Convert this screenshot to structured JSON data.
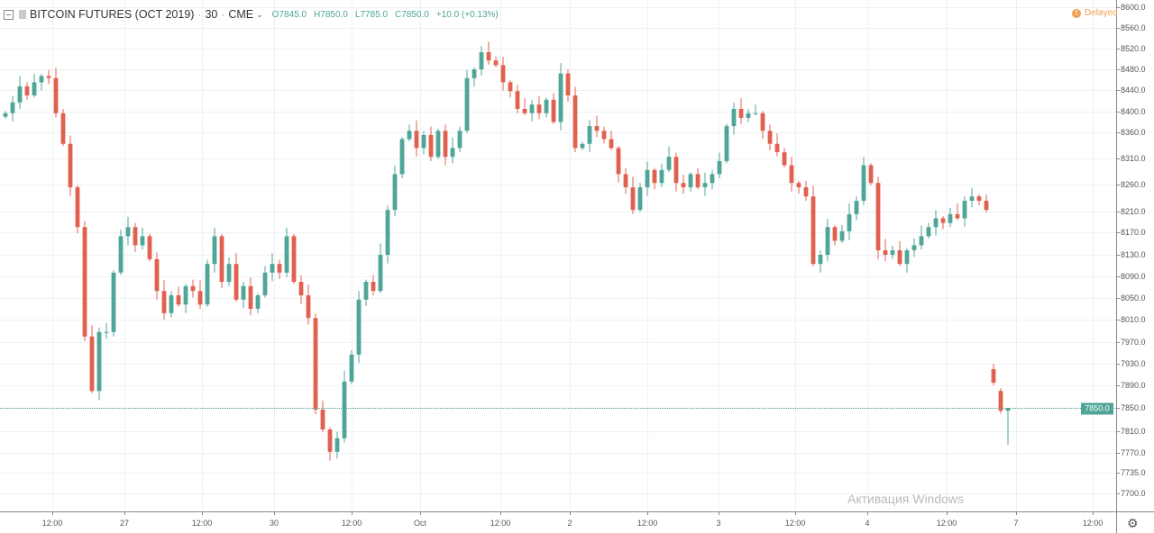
{
  "header": {
    "title": "BITCOIN FUTURES (OCT 2019)",
    "interval": "30",
    "exchange": "CME",
    "open": "O7845.0",
    "high": "H7850.0",
    "low": "L7785.0",
    "close": "C7850.0",
    "change": "+10.0 (+0.13%)"
  },
  "status": {
    "delayed_label": "Delayed"
  },
  "watermark": "Активация Windows",
  "colors": {
    "up": "#4fa597",
    "down": "#e0614f",
    "grid": "#eef1f4",
    "delayed": "#f0a050"
  },
  "chart_data": {
    "type": "candlestick",
    "title": "BITCOIN FUTURES (OCT 2019)",
    "y_scale": "price",
    "ylim": [
      7690,
      8610
    ],
    "grid": true,
    "y_ticks": [
      "8600.0",
      "8560.0",
      "8520.0",
      "8480.0",
      "8440.0",
      "8400.0",
      "8360.0",
      "8310.0",
      "8260.0",
      "8210.0",
      "8170.0",
      "8130.0",
      "8090.0",
      "8050.0",
      "8010.0",
      "7970.0",
      "7930.0",
      "7890.0",
      "7850.0",
      "7810.0",
      "7770.0",
      "7735.0",
      "7700.0"
    ],
    "x_ticks": [
      "12:00",
      "27",
      "12:00",
      "30",
      "12:00",
      "Oct",
      "12:00",
      "2",
      "12:00",
      "3",
      "12:00",
      "4",
      "12:00",
      "7",
      "12:00"
    ],
    "first_open": 8390,
    "approx_closes": [
      8397,
      8417,
      8447,
      8430,
      8455,
      8467,
      8463,
      8397,
      8338,
      8255,
      8180,
      7980,
      7880,
      7988,
      7988,
      8097,
      8163,
      8180,
      8147,
      8163,
      8122,
      8063,
      8022,
      8055,
      8038,
      8072,
      8063,
      8038,
      8113,
      8163,
      8080,
      8113,
      8047,
      8072,
      8030,
      8055,
      8097,
      8113,
      8097,
      8163,
      8080,
      8055,
      8013,
      7847,
      7813,
      7772,
      7797,
      7897,
      7947,
      8047,
      8080,
      8063,
      8130,
      8213,
      8280,
      8347,
      8363,
      8330,
      8355,
      8313,
      8363,
      8313,
      8330,
      8363,
      8463,
      8480,
      8513,
      8497,
      8488,
      8455,
      8438,
      8405,
      8397,
      8413,
      8397,
      8422,
      8380,
      8472,
      8430,
      8330,
      8338,
      8372,
      8363,
      8347,
      8330,
      8280,
      8255,
      8213,
      8255,
      8288,
      8263,
      8288,
      8313,
      8263,
      8255,
      8280,
      8255,
      8263,
      8280,
      8305,
      8372,
      8405,
      8388,
      8397,
      8397,
      8363,
      8338,
      8322,
      8297,
      8263,
      8255,
      8238,
      8113,
      8130,
      8180,
      8155,
      8172,
      8205,
      8230,
      8297,
      8263,
      8138,
      8130,
      8138,
      8113,
      8138,
      8147,
      8163,
      8180,
      8197,
      8188,
      8205,
      8197,
      8230,
      8238,
      8230,
      8213
    ],
    "last_candles_ohlc": [
      [
        7920,
        7930,
        7890,
        7895
      ],
      [
        7880,
        7885,
        7840,
        7845
      ],
      [
        7845,
        7850,
        7785,
        7850
      ]
    ],
    "last_price": "7850.0"
  }
}
